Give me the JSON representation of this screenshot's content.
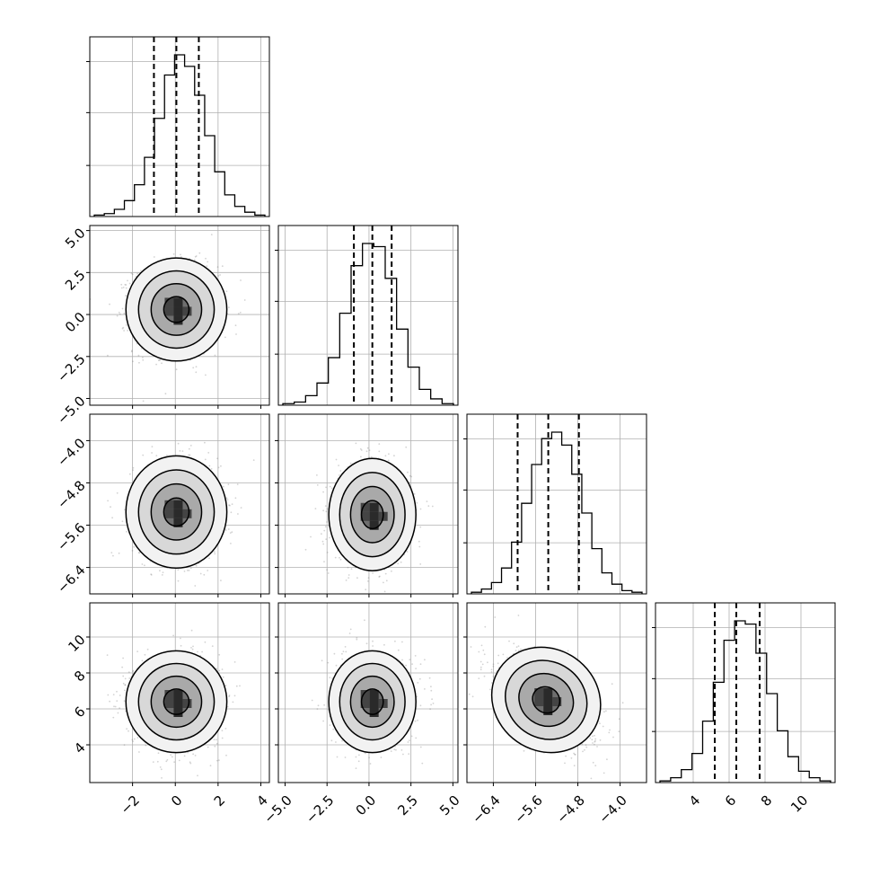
{
  "chart_data": {
    "type": "corner",
    "parameters": [
      {
        "index": 0,
        "ticks": [
          -2,
          0,
          2,
          4
        ],
        "tick_labels": [
          "−2",
          "0",
          "2",
          "4"
        ],
        "range": [
          -4.0,
          4.4
        ],
        "quantiles": [
          -1.0,
          0.05,
          1.1
        ],
        "hist_counts": [
          1,
          2,
          5,
          11,
          22,
          41,
          68,
          98,
          112,
          104,
          84,
          56,
          31,
          15,
          7,
          3,
          1
        ]
      },
      {
        "index": 1,
        "ticks": [
          -5.0,
          -2.5,
          0.0,
          2.5,
          5.0
        ],
        "tick_labels": [
          "−5.0",
          "−2.5",
          "0.0",
          "2.5",
          "5.0"
        ],
        "range": [
          -5.4,
          5.3
        ],
        "quantiles": [
          -0.9,
          0.2,
          1.35
        ],
        "hist_counts": [
          1,
          2,
          6,
          14,
          30,
          58,
          88,
          102,
          100,
          80,
          48,
          24,
          10,
          4,
          1
        ]
      },
      {
        "index": 2,
        "ticks": [
          -6.4,
          -5.6,
          -4.8,
          -4.0
        ],
        "tick_labels": [
          "−6.4",
          "−5.6",
          "−4.8",
          "−4.0"
        ],
        "range": [
          -6.9,
          -3.5
        ],
        "quantiles": [
          -5.94,
          -5.36,
          -4.78
        ],
        "hist_counts": [
          1,
          3,
          7,
          16,
          32,
          56,
          80,
          96,
          100,
          92,
          74,
          50,
          28,
          13,
          6,
          2,
          1
        ]
      },
      {
        "index": 3,
        "ticks": [
          4,
          6,
          8,
          10
        ],
        "tick_labels": [
          "4",
          "6",
          "8",
          "10"
        ],
        "range": [
          1.9,
          11.9
        ],
        "quantiles": [
          5.2,
          6.4,
          7.7
        ],
        "hist_counts": [
          1,
          3,
          8,
          18,
          38,
          62,
          88,
          100,
          98,
          80,
          55,
          32,
          16,
          7,
          3,
          1
        ]
      }
    ],
    "pairs": [
      {
        "row": 1,
        "col": 0,
        "center": [
          0.05,
          0.3
        ],
        "spread": [
          1.0,
          1.3
        ],
        "rho": 0.0
      },
      {
        "row": 2,
        "col": 0,
        "center": [
          0.05,
          -5.35
        ],
        "spread": [
          1.0,
          0.45
        ],
        "rho": 0.0
      },
      {
        "row": 2,
        "col": 1,
        "center": [
          0.2,
          -5.4
        ],
        "spread": [
          1.1,
          0.45
        ],
        "rho": 0.0
      },
      {
        "row": 3,
        "col": 0,
        "center": [
          0.05,
          6.4
        ],
        "spread": [
          1.0,
          1.2
        ],
        "rho": 0.0
      },
      {
        "row": 3,
        "col": 1,
        "center": [
          0.2,
          6.4
        ],
        "spread": [
          1.1,
          1.2
        ],
        "rho": 0.0
      },
      {
        "row": 3,
        "col": 2,
        "center": [
          -5.4,
          6.5
        ],
        "spread": [
          0.45,
          1.2
        ],
        "rho": -0.5
      }
    ],
    "contour_levels_sigma": [
      0.5,
      1.0,
      1.5,
      2.0
    ],
    "grid": true,
    "colors": {
      "line": "#000000",
      "grid": "#b0b0b0",
      "points": "#808080"
    }
  }
}
